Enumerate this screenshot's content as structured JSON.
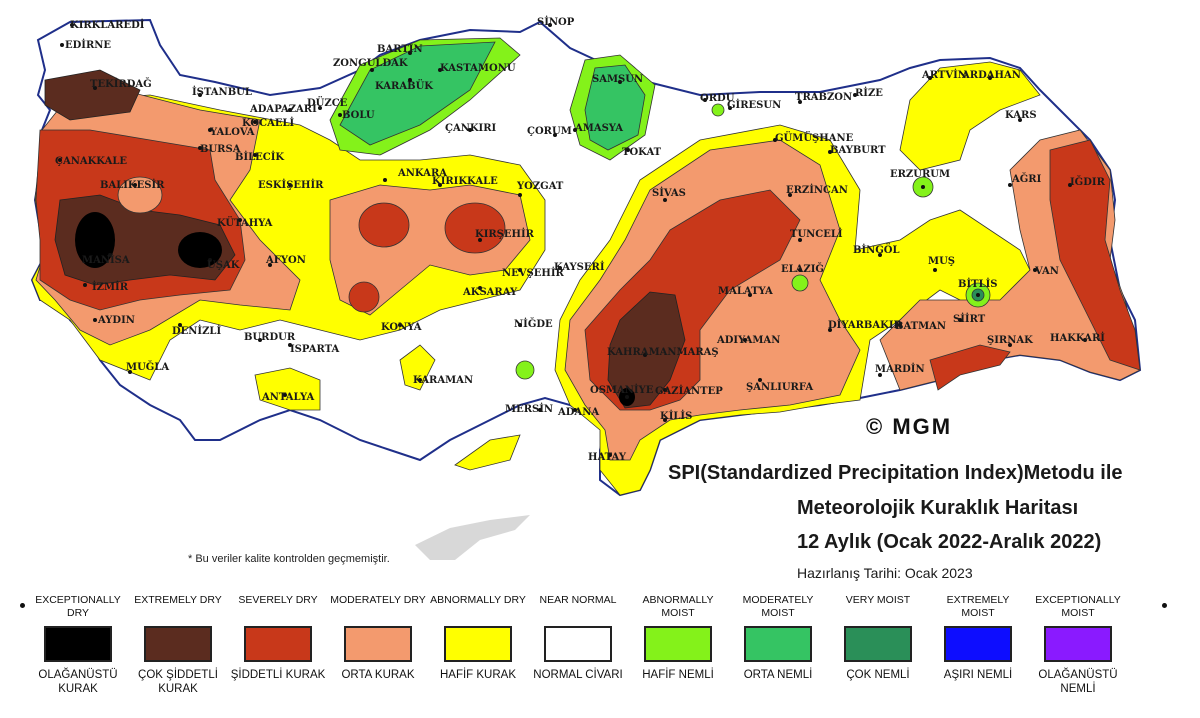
{
  "title": {
    "line1": "SPI(Standardized Precipitation Index)Metodu ile",
    "line2": "Meteorolojik Kuraklık Haritası",
    "line3": "12 Aylık (Ocak 2022-Aralık 2022)",
    "prepared": "Hazırlanış Tarihi: Ocak 2023"
  },
  "copyright": "© MGM",
  "note": "* Bu veriler kalite kontrolden geçmemiştir.",
  "colors": {
    "exceptionally_dry": "#000000",
    "extremely_dry": "#5b2c1f",
    "severely_dry": "#c8381a",
    "moderately_dry": "#f39a6e",
    "abnormally_dry": "#ffff00",
    "near_normal": "#ffffff",
    "abnormally_moist": "#84f21a",
    "moderately_moist": "#35c463",
    "very_moist": "#2a8f58",
    "extremely_moist": "#0d0dff",
    "exceptionally_moist": "#8a1aff",
    "border": "#1f2f8a"
  },
  "legend": [
    {
      "en": "EXCEPTIONALLY DRY",
      "tr": "OLAĞANÜSTÜ KURAK",
      "color": "#000000"
    },
    {
      "en": "EXTREMELY DRY",
      "tr": "ÇOK ŞİDDETLİ KURAK",
      "color": "#5b2c1f"
    },
    {
      "en": "SEVERELY DRY",
      "tr": "ŞİDDETLİ KURAK",
      "color": "#c8381a"
    },
    {
      "en": "MODERATELY DRY",
      "tr": "ORTA KURAK",
      "color": "#f39a6e"
    },
    {
      "en": "ABNORMALLY DRY",
      "tr": "HAFİF KURAK",
      "color": "#ffff00"
    },
    {
      "en": "NEAR NORMAL",
      "tr": "NORMAL CİVARI",
      "color": "#ffffff"
    },
    {
      "en": "ABNORMALLY MOIST",
      "tr": "HAFİF NEMLİ",
      "color": "#84f21a"
    },
    {
      "en": "MODERATELY MOIST",
      "tr": "ORTA NEMLİ",
      "color": "#35c463"
    },
    {
      "en": "VERY MOIST",
      "tr": "ÇOK NEMLİ",
      "color": "#2a8f58"
    },
    {
      "en": "EXTREMELY MOIST",
      "tr": "AŞIRI NEMLİ",
      "color": "#0d0dff"
    },
    {
      "en": "EXCEPTIONALLY MOIST",
      "tr": "OLAĞANÜSTÜ NEMLİ",
      "color": "#8a1aff"
    }
  ],
  "cities": [
    "KIRKLAREDİ",
    "EDİRNE",
    "TEKİRDAĞ",
    "İSTANBUL",
    "YALOVA",
    "KOCAELİ",
    "ADAPAZARI",
    "DÜZCE",
    "BOLU",
    "ZONGULDAK",
    "BARTIN",
    "KARABÜK",
    "KASTAMONU",
    "SİNOP",
    "SAMSUN",
    "AMASYA",
    "ÇORUM",
    "ÇANKIRI",
    "TOKAT",
    "ORDU",
    "GİRESUN",
    "TRABZON",
    "RİZE",
    "ARTVİN",
    "ARDAHAN",
    "KARS",
    "IĞDIR",
    "AĞRI",
    "GÜMÜŞHANE",
    "BAYBURT",
    "ERZURUM",
    "ERZİNCAN",
    "SİVAS",
    "YOZGAT",
    "KIRIKKALE",
    "ANKARA",
    "KIRŞEHİR",
    "NEVŞEHİR",
    "KAYSERİ",
    "AKSARAY",
    "NİĞDE",
    "KONYA",
    "KARAMAN",
    "MERSİN",
    "ADANA",
    "OSMANİYE",
    "HATAY",
    "KİLİS",
    "GAZİANTEP",
    "KAHRAMANMARAŞ",
    "ADIYAMAN",
    "MALATYA",
    "TUNCELİ",
    "ELAZIĞ",
    "BİNGÖL",
    "MUŞ",
    "BİTLİS",
    "VAN",
    "HAKKARİ",
    "ŞIRNAK",
    "SİİRT",
    "BATMAN",
    "MARDİN",
    "DİYARBAKIR",
    "ŞANLIURFA",
    "ÇANAKKALE",
    "BALIKESİR",
    "BURSA",
    "BİLECİK",
    "ESKİŞEHİR",
    "KÜTAHYA",
    "MANİSA",
    "UŞAK",
    "İZMİR",
    "AYDIN",
    "DENİZLİ",
    "AFYON",
    "BURDUR",
    "ISPARTA",
    "MUĞLA",
    "ANTALYA"
  ]
}
